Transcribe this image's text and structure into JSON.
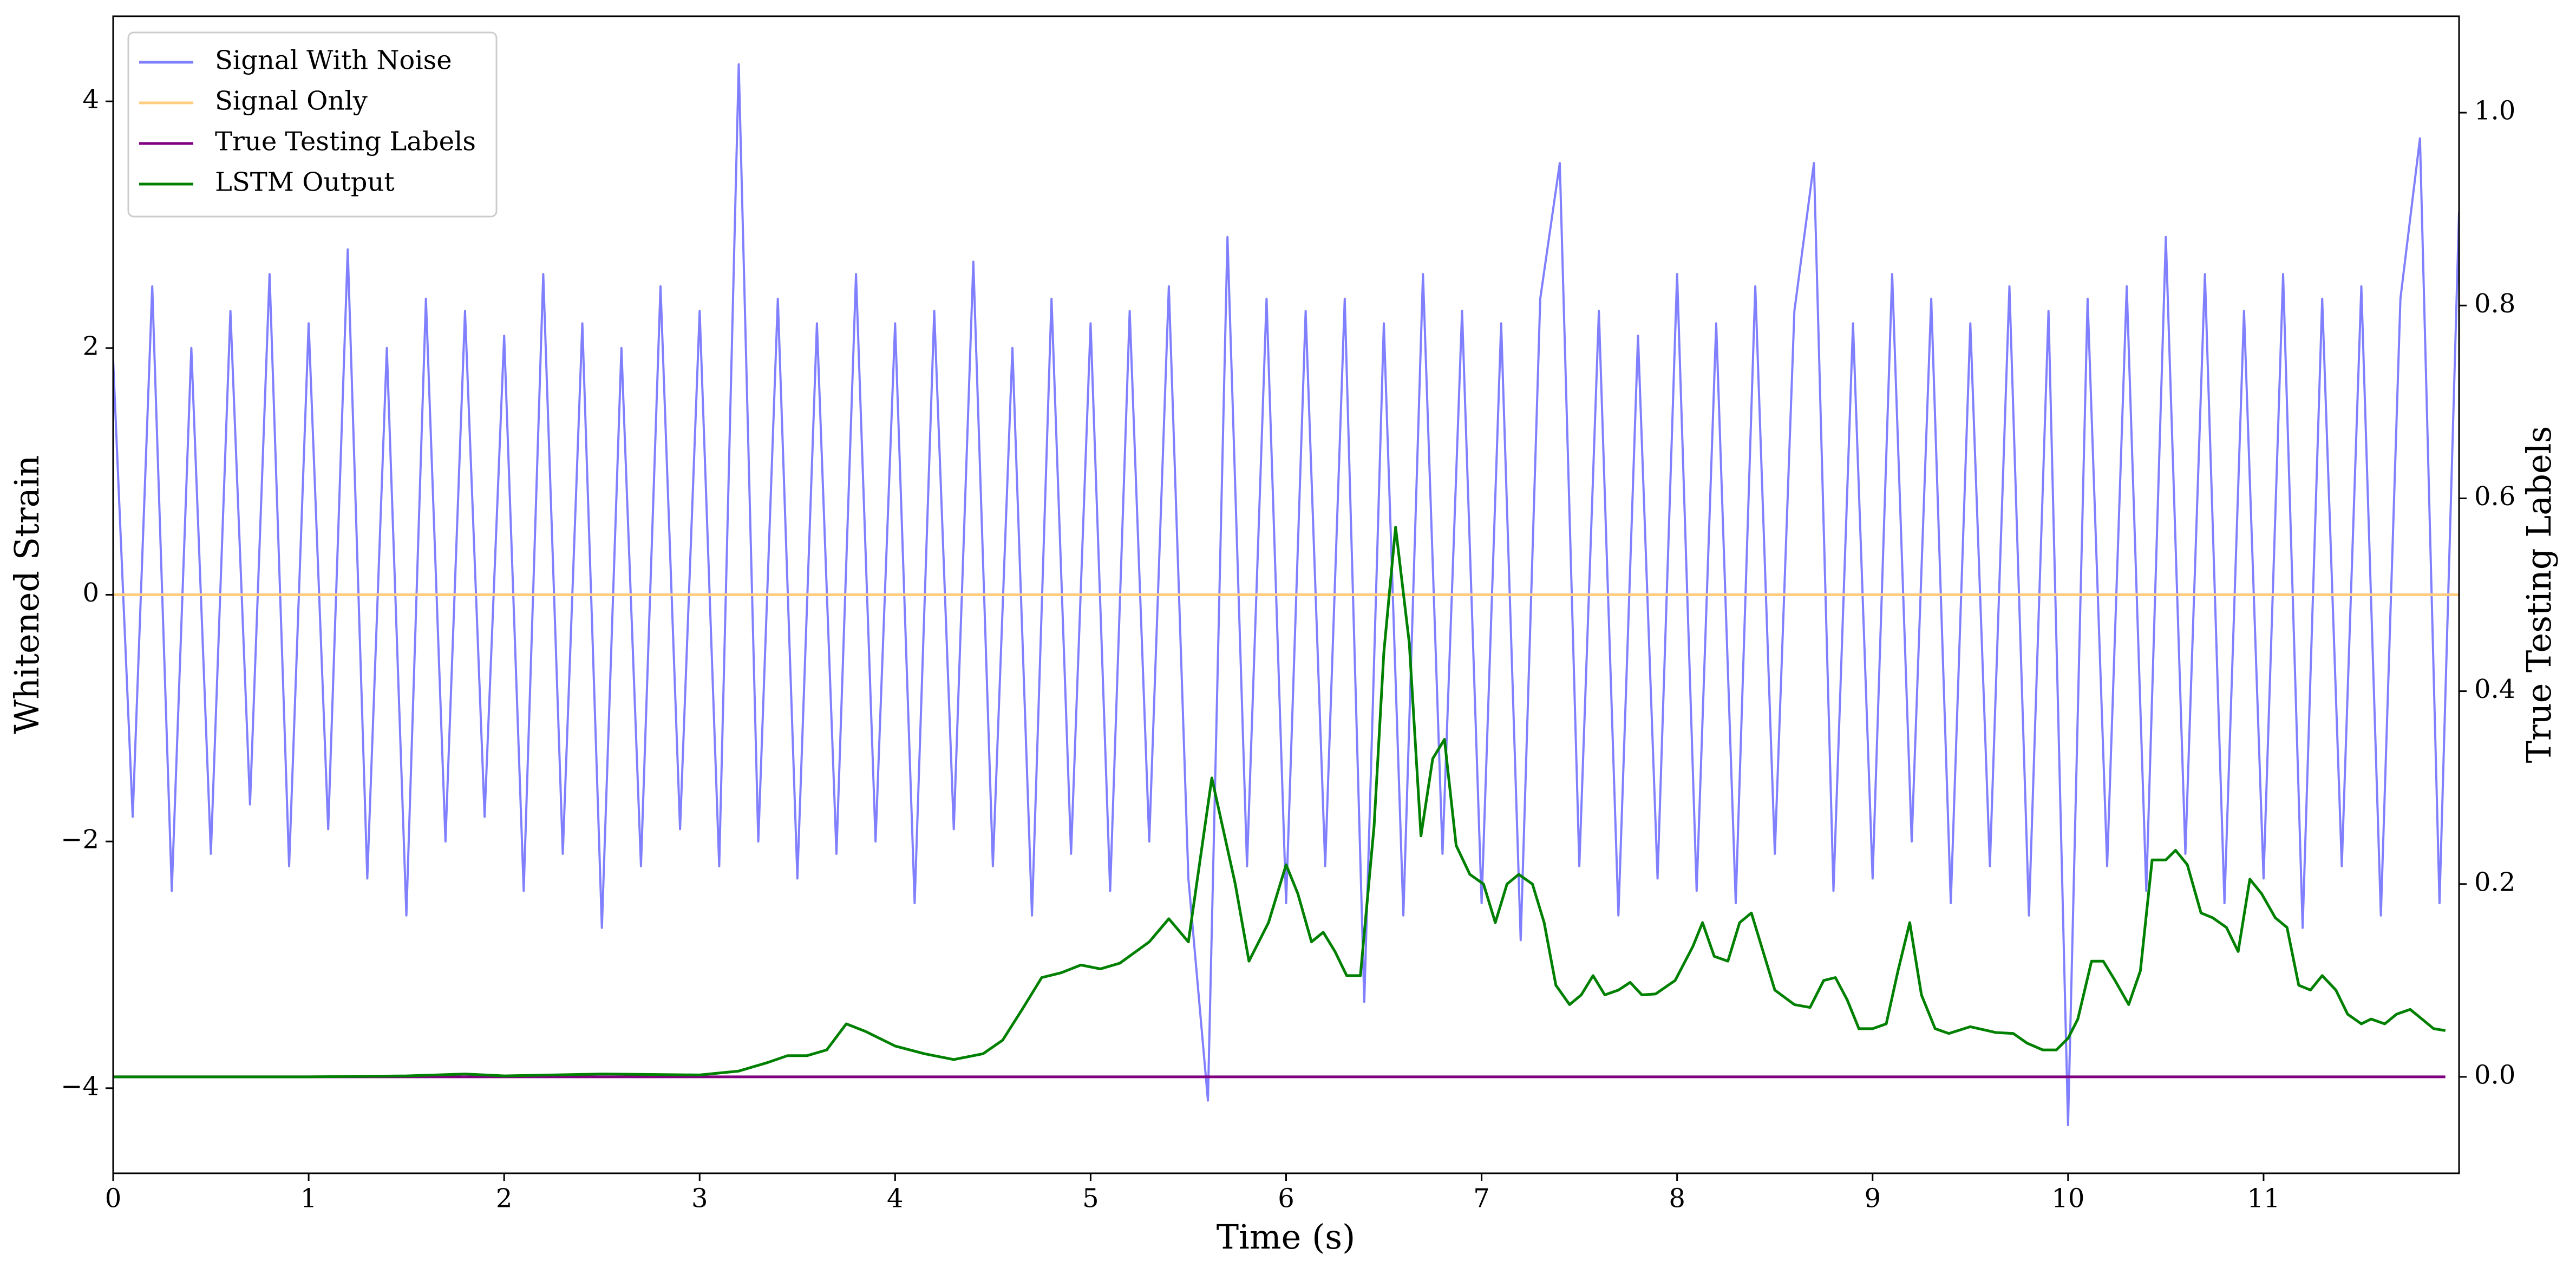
{
  "chart_data": {
    "type": "line",
    "xlabel": "Time (s)",
    "ylabel": "Whitened Strain",
    "y2label": "True Testing Labels",
    "xlim": [
      0,
      12
    ],
    "xticks": [
      0,
      1,
      2,
      3,
      4,
      5,
      6,
      7,
      8,
      9,
      10,
      11
    ],
    "ylim": [
      -4.69,
      4.69
    ],
    "yticks": [
      {
        "value": -4,
        "label": "−4"
      },
      {
        "value": -2,
        "label": "−2"
      },
      0,
      2,
      4
    ],
    "y2lim": [
      -0.1,
      1.1
    ],
    "y2ticks": [
      {
        "value": 0,
        "label": "0.0"
      },
      {
        "value": 0.2,
        "label": "0.2"
      },
      {
        "value": 0.4,
        "label": "0.4"
      },
      {
        "value": 0.6,
        "label": "0.6"
      },
      {
        "value": 0.8,
        "label": "0.8"
      },
      {
        "value": 1,
        "label": "1.0"
      }
    ],
    "legend": "upper left",
    "series": [
      {
        "name": "Signal With Noise",
        "color": "#8080ff",
        "x": [
          0,
          0.1,
          0.2,
          0.3,
          0.4,
          0.5,
          0.6,
          0.7,
          0.8,
          0.9,
          1,
          1.1,
          1.2,
          1.3,
          1.4,
          1.5,
          1.6,
          1.7,
          1.8,
          1.9,
          2,
          2.1,
          2.2,
          2.3,
          2.4,
          2.5,
          2.6,
          2.7,
          2.8,
          2.9,
          3,
          3.1,
          3.2,
          3.3,
          3.4,
          3.5,
          3.6,
          3.7,
          3.8,
          3.9,
          4,
          4.1,
          4.2,
          4.3,
          4.4,
          4.5,
          4.6,
          4.7,
          4.8,
          4.9,
          5,
          5.1,
          5.2,
          5.3,
          5.4,
          5.5,
          5.6,
          5.7,
          5.8,
          5.9,
          6,
          6.1,
          6.2,
          6.3,
          6.4,
          6.5,
          6.6,
          6.7,
          6.8,
          6.9,
          7,
          7.1,
          7.2,
          7.3,
          7.4,
          7.5,
          7.6,
          7.7,
          7.8,
          7.9,
          8,
          8.1,
          8.2,
          8.3,
          8.4,
          8.5,
          8.6,
          8.7,
          8.8,
          8.9,
          9,
          9.1,
          9.2,
          9.3,
          9.4,
          9.5,
          9.6,
          9.7,
          9.8,
          9.9,
          10,
          10.1,
          10.2,
          10.3,
          10.4,
          10.5,
          10.6,
          10.7,
          10.8,
          10.9,
          11,
          11.1,
          11.2,
          11.3,
          11.4,
          11.5,
          11.6,
          11.7,
          11.8,
          11.9,
          12
        ],
        "values": [
          1.9,
          -1.8,
          2.5,
          -2.4,
          2.0,
          -2.1,
          2.3,
          -1.7,
          2.6,
          -2.2,
          2.2,
          -1.9,
          2.8,
          -2.3,
          2.0,
          -2.6,
          2.4,
          -2.0,
          2.3,
          -1.8,
          2.1,
          -2.4,
          2.6,
          -2.1,
          2.2,
          -2.7,
          2.0,
          -2.2,
          2.5,
          -1.9,
          2.3,
          -2.2,
          4.3,
          -2.0,
          2.4,
          -2.3,
          2.2,
          -2.1,
          2.6,
          -2.0,
          2.2,
          -2.5,
          2.3,
          -1.9,
          2.7,
          -2.2,
          2.0,
          -2.6,
          2.4,
          -2.1,
          2.2,
          -2.4,
          2.3,
          -2.0,
          2.5,
          -2.3,
          -4.1,
          2.9,
          -2.2,
          2.4,
          -2.5,
          2.3,
          -2.2,
          2.4,
          -3.3,
          2.2,
          -2.6,
          2.6,
          -2.1,
          2.3,
          -2.5,
          2.2,
          -2.8,
          2.4,
          3.5,
          -2.2,
          2.3,
          -2.6,
          2.1,
          -2.3,
          2.6,
          -2.4,
          2.2,
          -2.5,
          2.5,
          -2.1,
          2.3,
          3.5,
          -2.4,
          2.2,
          -2.3,
          2.6,
          -2.0,
          2.4,
          -2.5,
          2.2,
          -2.2,
          2.5,
          -2.6,
          2.3,
          -4.3,
          2.4,
          -2.2,
          2.5,
          -2.4,
          2.9,
          -2.1,
          2.6,
          -2.5,
          2.3,
          -2.3,
          2.6,
          -2.7,
          2.4,
          -2.2,
          2.5,
          -2.6,
          2.4,
          3.7,
          -2.5,
          3.1
        ]
      },
      {
        "name": "Signal Only",
        "color": "#ffcc80",
        "x": [
          0,
          12
        ],
        "values": [
          0,
          0
        ]
      },
      {
        "name": "True Testing Labels",
        "color": "#800080",
        "axis": "y2",
        "x": [
          0,
          11.93
        ],
        "values": [
          0,
          0
        ]
      },
      {
        "name": "LSTM Output",
        "color": "#008000",
        "axis": "y2",
        "x": [
          0,
          1,
          1.5,
          1.8,
          2.0,
          2.5,
          3.0,
          3.2,
          3.35,
          3.45,
          3.55,
          3.65,
          3.75,
          3.85,
          3.9,
          4.0,
          4.15,
          4.3,
          4.45,
          4.55,
          4.65,
          4.75,
          4.85,
          4.95,
          5.05,
          5.15,
          5.3,
          5.4,
          5.5,
          5.62,
          5.74,
          5.81,
          5.91,
          6.0,
          6.06,
          6.13,
          6.19,
          6.25,
          6.31,
          6.38,
          6.45,
          6.5,
          6.56,
          6.63,
          6.69,
          6.75,
          6.81,
          6.87,
          6.94,
          7.01,
          7.07,
          7.13,
          7.19,
          7.26,
          7.32,
          7.38,
          7.45,
          7.51,
          7.57,
          7.63,
          7.7,
          7.76,
          7.82,
          7.89,
          7.99,
          8.08,
          8.13,
          8.19,
          8.26,
          8.32,
          8.38,
          8.44,
          8.5,
          8.6,
          8.68,
          8.75,
          8.81,
          8.87,
          8.93,
          9.0,
          9.07,
          9.13,
          9.19,
          9.25,
          9.32,
          9.39,
          9.5,
          9.63,
          9.72,
          9.79,
          9.87,
          9.94,
          10.0,
          10.05,
          10.12,
          10.18,
          10.24,
          10.31,
          10.37,
          10.43,
          10.5,
          10.55,
          10.61,
          10.68,
          10.74,
          10.81,
          10.87,
          10.93,
          10.99,
          11.06,
          11.12,
          11.18,
          11.24,
          11.3,
          11.37,
          11.43,
          11.5,
          11.55,
          11.62,
          11.68,
          11.75,
          11.81,
          11.87,
          11.93
        ],
        "values": [
          0,
          0,
          0.001,
          0.003,
          0.001,
          0.003,
          0.002,
          0.006,
          0.015,
          0.022,
          0.022,
          0.028,
          0.055,
          0.047,
          0.042,
          0.032,
          0.024,
          0.018,
          0.024,
          0.038,
          0.07,
          0.103,
          0.108,
          0.116,
          0.112,
          0.118,
          0.14,
          0.164,
          0.14,
          0.31,
          0.2,
          0.12,
          0.16,
          0.22,
          0.19,
          0.14,
          0.15,
          0.13,
          0.105,
          0.105,
          0.26,
          0.44,
          0.57,
          0.45,
          0.25,
          0.33,
          0.35,
          0.24,
          0.21,
          0.2,
          0.16,
          0.2,
          0.21,
          0.2,
          0.16,
          0.095,
          0.075,
          0.085,
          0.105,
          0.085,
          0.09,
          0.098,
          0.085,
          0.086,
          0.1,
          0.135,
          0.16,
          0.125,
          0.12,
          0.16,
          0.17,
          0.13,
          0.09,
          0.075,
          0.072,
          0.1,
          0.103,
          0.08,
          0.05,
          0.05,
          0.055,
          0.11,
          0.16,
          0.085,
          0.05,
          0.045,
          0.052,
          0.046,
          0.045,
          0.035,
          0.028,
          0.028,
          0.04,
          0.06,
          0.12,
          0.12,
          0.1,
          0.075,
          0.11,
          0.225,
          0.225,
          0.235,
          0.22,
          0.17,
          0.165,
          0.155,
          0.13,
          0.205,
          0.19,
          0.165,
          0.155,
          0.095,
          0.09,
          0.105,
          0.09,
          0.065,
          0.055,
          0.06,
          0.055,
          0.065,
          0.07,
          0.06,
          0.05,
          0.048
        ]
      }
    ]
  }
}
